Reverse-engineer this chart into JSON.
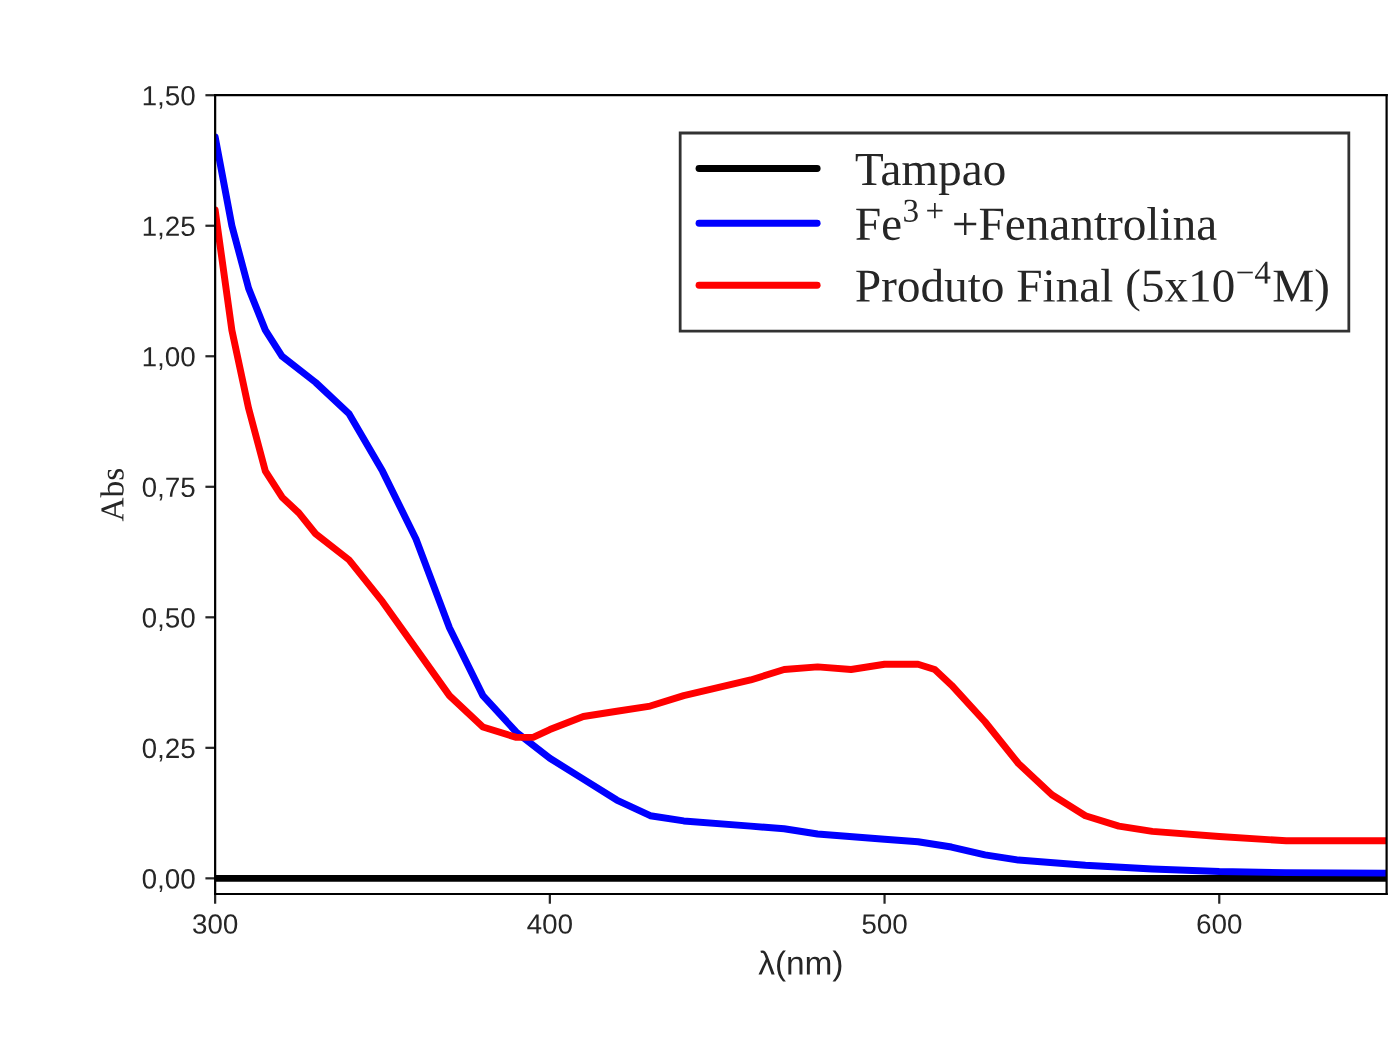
{
  "chart_data": {
    "type": "line",
    "xlabel": "λ(nm)",
    "ylabel": "Abs",
    "xlim": [
      300,
      650
    ],
    "xticks": [
      300,
      400,
      500,
      600
    ],
    "ylim": [
      -0.03,
      1.5
    ],
    "yticks": [
      {
        "value": 0,
        "label": "0,00"
      },
      {
        "value": 0.25,
        "label": "0,25"
      },
      {
        "value": 0.5,
        "label": "0,50"
      },
      {
        "value": 0.75,
        "label": "0,75"
      },
      {
        "value": 1.0,
        "label": "1,00"
      },
      {
        "value": 1.25,
        "label": "1,25"
      },
      {
        "value": 1.5,
        "label": "1,50"
      }
    ],
    "grid": false,
    "legend": "top right",
    "marker": "none",
    "line_style": "solid",
    "series": [
      {
        "name": "Tampao",
        "color": "#000000",
        "x": [
          300,
          400,
          500,
          600,
          650
        ],
        "values": [
          0,
          0,
          0,
          0,
          0
        ]
      },
      {
        "name": "Fe$^{3+}$+Fenantrolina",
        "color": "#0000ff",
        "x": [
          300,
          305,
          310,
          315,
          320,
          330,
          340,
          350,
          360,
          370,
          380,
          390,
          400,
          410,
          420,
          430,
          440,
          460,
          470,
          480,
          500,
          510,
          520,
          530,
          540,
          560,
          580,
          600,
          620,
          650
        ],
        "values": [
          1.42,
          1.25,
          1.13,
          1.05,
          1.0,
          0.95,
          0.89,
          0.78,
          0.65,
          0.48,
          0.35,
          0.28,
          0.23,
          0.19,
          0.15,
          0.12,
          0.11,
          0.1,
          0.095,
          0.085,
          0.075,
          0.07,
          0.06,
          0.045,
          0.035,
          0.025,
          0.018,
          0.013,
          0.011,
          0.01
        ]
      },
      {
        "name": "Produto Final (5x10$^{−4}$M)",
        "color": "#ff0000",
        "x": [
          300,
          305,
          310,
          315,
          320,
          325,
          330,
          340,
          350,
          360,
          370,
          380,
          390,
          395,
          400,
          410,
          420,
          430,
          440,
          460,
          470,
          480,
          490,
          500,
          510,
          515,
          520,
          530,
          540,
          550,
          560,
          570,
          580,
          600,
          620,
          650
        ],
        "values": [
          1.28,
          1.05,
          0.9,
          0.78,
          0.73,
          0.7,
          0.66,
          0.61,
          0.53,
          0.44,
          0.35,
          0.29,
          0.27,
          0.27,
          0.285,
          0.31,
          0.32,
          0.33,
          0.35,
          0.38,
          0.4,
          0.405,
          0.4,
          0.41,
          0.41,
          0.4,
          0.37,
          0.3,
          0.22,
          0.16,
          0.12,
          0.1,
          0.09,
          0.08,
          0.072,
          0.072
        ]
      }
    ]
  }
}
